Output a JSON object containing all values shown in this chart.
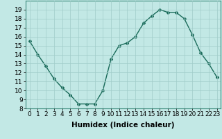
{
  "x": [
    0,
    1,
    2,
    3,
    4,
    5,
    6,
    7,
    8,
    9,
    10,
    11,
    12,
    13,
    14,
    15,
    16,
    17,
    18,
    19,
    20,
    21,
    22,
    23
  ],
  "y": [
    15.5,
    14.0,
    12.7,
    11.3,
    10.3,
    9.5,
    8.5,
    8.5,
    8.5,
    10.0,
    13.5,
    15.0,
    15.3,
    16.0,
    17.5,
    18.3,
    19.0,
    18.7,
    18.7,
    18.0,
    16.2,
    14.2,
    13.0,
    11.5
  ],
  "line_color": "#1a6b5a",
  "marker": "D",
  "marker_size": 2,
  "bg_color": "#c2e8e5",
  "grid_color": "#a0ccc9",
  "xlabel": "Humidex (Indice chaleur)",
  "ylim": [
    8,
    20
  ],
  "xlim": [
    -0.5,
    23.5
  ],
  "yticks": [
    8,
    9,
    10,
    11,
    12,
    13,
    14,
    15,
    16,
    17,
    18,
    19
  ],
  "xticks": [
    0,
    1,
    2,
    3,
    4,
    5,
    6,
    7,
    8,
    9,
    10,
    11,
    12,
    13,
    14,
    15,
    16,
    17,
    18,
    19,
    20,
    21,
    22,
    23
  ],
  "xlabel_fontsize": 7.5,
  "tick_fontsize": 6.5,
  "line_width": 1.0
}
